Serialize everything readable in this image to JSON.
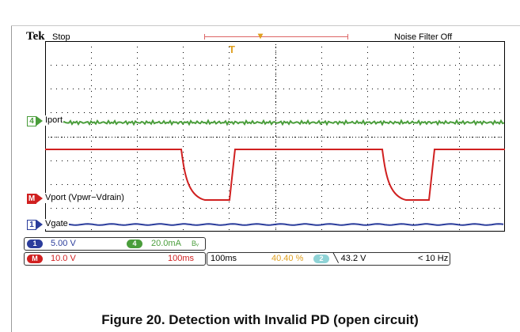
{
  "scope": {
    "brand": "Tek",
    "run_state": "Stop",
    "noise_filter": "Noise Filter Off",
    "trigger_position_glyph": "็",
    "trigger_point_glyph": "T",
    "colors": {
      "ch1": "#2b3d9c",
      "ch4": "#4a9d3b",
      "math": "#d02020",
      "grid": "#000000",
      "trigger": "#e0a020"
    }
  },
  "channels": {
    "ch4": {
      "number": "4",
      "label": "Iport"
    },
    "math": {
      "number": "M",
      "label": "Vport (Vpwr−Vdrain)"
    },
    "ch1": {
      "number": "1",
      "label": "Vgate"
    }
  },
  "status_bar": {
    "ch1_num": "1",
    "ch1_scale": "5.00 V",
    "ch4_num": "4",
    "ch4_scale": "20.0mA",
    "ch4_bw": "Bᵥ",
    "math_num": "M",
    "math_scale": "10.0 V",
    "math_time": "100ms",
    "timebase": "100ms",
    "trigger_pos": "40.40 %",
    "trigger_source": "2",
    "trigger_level": "╲ 43.2 V",
    "freq": "< 10 Hz"
  },
  "caption": "Figure 20. Detection with Invalid PD (open circuit)"
}
